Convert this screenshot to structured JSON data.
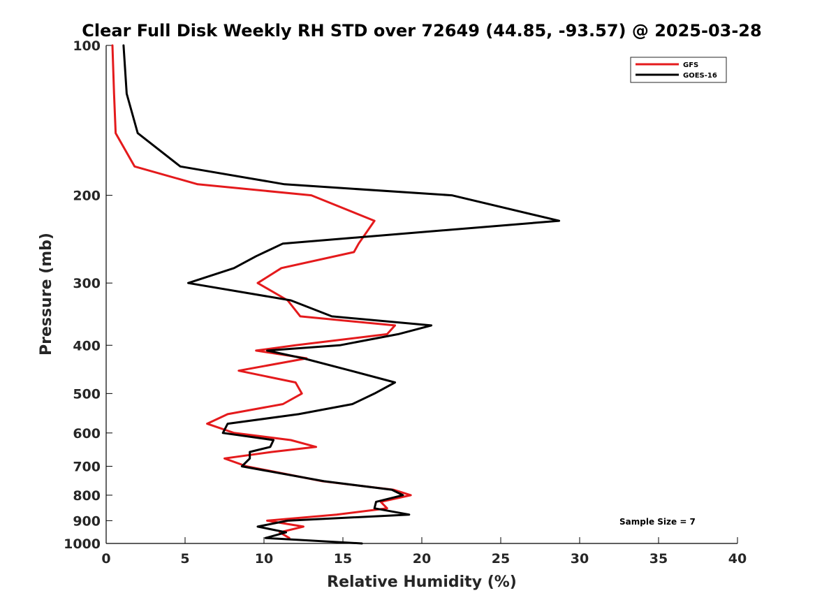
{
  "chart_data": {
    "type": "line",
    "title": "Clear Full Disk Weekly RH STD over 72649 (44.85, -93.57) @ 2025-03-28",
    "xlabel": "Relative Humidity (%)",
    "ylabel": "Pressure (mb)",
    "xlim": [
      0,
      40
    ],
    "ylim": [
      100,
      1000
    ],
    "y_scale": "log",
    "y_reversed": true,
    "grid": false,
    "legend_position": "top-right",
    "x_ticks": [
      0,
      5,
      10,
      15,
      20,
      25,
      30,
      35,
      40
    ],
    "y_ticks": [
      100,
      200,
      300,
      400,
      500,
      600,
      700,
      800,
      900,
      1000
    ],
    "annotation": "Sample Size = 7",
    "series": [
      {
        "name": "GFS",
        "color": "#e41a1c",
        "points": [
          [
            0.4,
            100
          ],
          [
            0.5,
            125
          ],
          [
            0.6,
            150
          ],
          [
            1.8,
            175
          ],
          [
            5.8,
            190
          ],
          [
            13.0,
            200
          ],
          [
            17.0,
            225
          ],
          [
            16.0,
            250
          ],
          [
            15.7,
            260
          ],
          [
            11.1,
            280
          ],
          [
            9.6,
            300
          ],
          [
            11.5,
            325
          ],
          [
            12.3,
            350
          ],
          [
            18.3,
            365
          ],
          [
            17.8,
            380
          ],
          [
            12.0,
            400
          ],
          [
            9.5,
            410
          ],
          [
            12.7,
            425
          ],
          [
            8.4,
            450
          ],
          [
            12.0,
            475
          ],
          [
            12.4,
            500
          ],
          [
            11.2,
            525
          ],
          [
            7.7,
            550
          ],
          [
            6.4,
            575
          ],
          [
            8.1,
            600
          ],
          [
            11.7,
            620
          ],
          [
            13.3,
            640
          ],
          [
            10.5,
            655
          ],
          [
            7.5,
            675
          ],
          [
            8.9,
            700
          ],
          [
            13.7,
            750
          ],
          [
            18.2,
            780
          ],
          [
            19.3,
            800
          ],
          [
            17.4,
            825
          ],
          [
            17.8,
            850
          ],
          [
            14.6,
            875
          ],
          [
            10.2,
            900
          ],
          [
            12.5,
            925
          ],
          [
            11.0,
            950
          ],
          [
            11.6,
            975
          ]
        ]
      },
      {
        "name": "GOES-16",
        "color": "#000000",
        "points": [
          [
            1.1,
            100
          ],
          [
            1.3,
            125
          ],
          [
            2.0,
            150
          ],
          [
            4.7,
            175
          ],
          [
            11.3,
            190
          ],
          [
            21.9,
            200
          ],
          [
            28.7,
            225
          ],
          [
            11.2,
            250
          ],
          [
            9.5,
            265
          ],
          [
            8.1,
            280
          ],
          [
            5.2,
            300
          ],
          [
            11.7,
            325
          ],
          [
            14.3,
            350
          ],
          [
            20.6,
            365
          ],
          [
            18.5,
            380
          ],
          [
            14.8,
            400
          ],
          [
            10.2,
            410
          ],
          [
            12.5,
            425
          ],
          [
            15.5,
            450
          ],
          [
            18.3,
            475
          ],
          [
            17.0,
            500
          ],
          [
            15.6,
            525
          ],
          [
            12.2,
            550
          ],
          [
            7.7,
            575
          ],
          [
            7.4,
            600
          ],
          [
            10.6,
            620
          ],
          [
            10.4,
            640
          ],
          [
            9.1,
            655
          ],
          [
            9.1,
            675
          ],
          [
            8.6,
            700
          ],
          [
            13.8,
            750
          ],
          [
            18.1,
            780
          ],
          [
            18.8,
            800
          ],
          [
            17.1,
            825
          ],
          [
            17.0,
            850
          ],
          [
            19.2,
            875
          ],
          [
            11.5,
            900
          ],
          [
            9.6,
            925
          ],
          [
            11.4,
            950
          ],
          [
            10.1,
            975
          ],
          [
            16.2,
            1000
          ]
        ]
      }
    ]
  }
}
